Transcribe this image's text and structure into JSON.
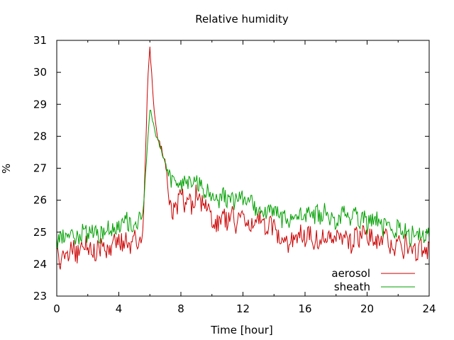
{
  "chart_data": {
    "type": "line",
    "title": "Relative humidity",
    "xlabel": "Time [hour]",
    "ylabel": "%",
    "xlim": [
      0,
      24
    ],
    "ylim": [
      23,
      31
    ],
    "x_ticks": [
      0,
      4,
      8,
      12,
      16,
      20,
      24
    ],
    "y_ticks": [
      23,
      24,
      25,
      26,
      27,
      28,
      29,
      30,
      31
    ],
    "legend_position": "bottom-right",
    "grid": false,
    "series": [
      {
        "name": "aerosol",
        "color": "#cc0000",
        "x": [
          0.0,
          0.25,
          0.5,
          0.75,
          1.0,
          1.25,
          1.5,
          1.75,
          2.0,
          2.25,
          2.5,
          2.75,
          3.0,
          3.25,
          3.5,
          3.75,
          4.0,
          4.25,
          4.5,
          4.75,
          5.0,
          5.25,
          5.5,
          5.6,
          5.75,
          5.9,
          6.0,
          6.1,
          6.25,
          6.5,
          6.75,
          7.0,
          7.25,
          7.5,
          7.75,
          8.0,
          8.25,
          8.5,
          8.75,
          9.0,
          9.25,
          9.5,
          9.75,
          10.0,
          10.25,
          10.5,
          10.75,
          11.0,
          11.25,
          11.5,
          11.75,
          12.0,
          12.25,
          12.5,
          12.75,
          13.0,
          13.25,
          13.5,
          13.75,
          14.0,
          14.25,
          14.5,
          14.75,
          15.0,
          15.25,
          15.5,
          15.75,
          16.0,
          16.25,
          16.5,
          16.75,
          17.0,
          17.25,
          17.5,
          17.75,
          18.0,
          18.25,
          18.5,
          18.75,
          19.0,
          19.25,
          19.5,
          19.75,
          20.0,
          20.25,
          20.5,
          20.75,
          21.0,
          21.25,
          21.5,
          21.75,
          22.0,
          22.25,
          22.5,
          22.75,
          23.0,
          23.25,
          23.5,
          23.75,
          24.0
        ],
        "values": [
          24.4,
          24.0,
          24.3,
          24.2,
          24.6,
          24.3,
          24.4,
          24.7,
          24.6,
          24.5,
          24.3,
          24.6,
          24.4,
          24.5,
          24.4,
          24.7,
          24.8,
          24.6,
          24.9,
          24.5,
          24.8,
          24.5,
          24.8,
          25.6,
          28.0,
          30.2,
          30.7,
          30.0,
          29.0,
          28.0,
          27.6,
          27.2,
          26.0,
          25.6,
          25.8,
          26.2,
          25.9,
          26.0,
          25.8,
          26.3,
          25.9,
          25.8,
          25.7,
          25.4,
          25.2,
          25.4,
          25.5,
          25.3,
          25.6,
          25.2,
          25.4,
          25.7,
          25.2,
          25.3,
          25.1,
          25.4,
          25.3,
          25.0,
          25.2,
          25.1,
          24.8,
          24.9,
          24.7,
          24.6,
          24.9,
          24.7,
          25.0,
          24.8,
          25.1,
          24.7,
          24.9,
          24.6,
          25.0,
          24.8,
          24.7,
          24.9,
          24.7,
          25.0,
          24.8,
          24.6,
          24.9,
          24.8,
          25.0,
          24.7,
          24.9,
          24.6,
          24.8,
          24.7,
          24.9,
          24.6,
          24.5,
          24.8,
          24.3,
          24.7,
          24.4,
          24.5,
          24.3,
          24.6,
          24.2,
          24.5
        ],
        "amplitude": 0.32
      },
      {
        "name": "sheath",
        "color": "#00a000",
        "x": [
          0.0,
          0.25,
          0.5,
          0.75,
          1.0,
          1.25,
          1.5,
          1.75,
          2.0,
          2.25,
          2.5,
          2.75,
          3.0,
          3.25,
          3.5,
          3.75,
          4.0,
          4.25,
          4.5,
          4.75,
          5.0,
          5.25,
          5.5,
          5.6,
          5.75,
          5.9,
          6.0,
          6.1,
          6.25,
          6.5,
          6.75,
          7.0,
          7.25,
          7.5,
          7.75,
          8.0,
          8.25,
          8.5,
          8.75,
          9.0,
          9.25,
          9.5,
          9.75,
          10.0,
          10.25,
          10.5,
          10.75,
          11.0,
          11.25,
          11.5,
          11.75,
          12.0,
          12.25,
          12.5,
          12.75,
          13.0,
          13.25,
          13.5,
          13.75,
          14.0,
          14.25,
          14.5,
          14.75,
          15.0,
          15.25,
          15.5,
          15.75,
          16.0,
          16.25,
          16.5,
          16.75,
          17.0,
          17.25,
          17.5,
          17.75,
          18.0,
          18.25,
          18.5,
          18.75,
          19.0,
          19.25,
          19.5,
          19.75,
          20.0,
          20.25,
          20.5,
          20.75,
          21.0,
          21.25,
          21.5,
          21.75,
          22.0,
          22.25,
          22.5,
          22.75,
          23.0,
          23.25,
          23.5,
          23.75,
          24.0
        ],
        "values": [
          24.7,
          24.8,
          24.9,
          24.8,
          25.0,
          24.8,
          24.9,
          25.1,
          24.9,
          25.0,
          25.1,
          24.9,
          25.0,
          25.2,
          25.0,
          25.1,
          25.2,
          25.3,
          25.4,
          25.2,
          25.3,
          25.3,
          25.5,
          25.8,
          27.0,
          28.2,
          28.9,
          28.6,
          28.3,
          27.9,
          27.5,
          27.1,
          26.7,
          26.5,
          26.4,
          26.5,
          26.6,
          26.5,
          26.6,
          26.6,
          26.4,
          26.3,
          26.4,
          26.2,
          26.1,
          26.0,
          26.2,
          25.9,
          26.0,
          25.9,
          26.1,
          26.0,
          25.8,
          26.0,
          25.7,
          25.8,
          25.7,
          25.6,
          25.7,
          25.5,
          25.6,
          25.4,
          25.5,
          25.3,
          25.5,
          25.4,
          25.6,
          25.5,
          25.7,
          25.4,
          25.6,
          25.5,
          25.7,
          25.4,
          25.6,
          25.3,
          25.5,
          25.6,
          25.4,
          25.5,
          25.6,
          25.3,
          25.5,
          25.2,
          25.4,
          25.3,
          25.5,
          25.1,
          25.3,
          25.2,
          25.0,
          25.2,
          24.9,
          25.1,
          24.8,
          25.0,
          24.9,
          25.1,
          24.8,
          25.0
        ],
        "amplitude": 0.28
      }
    ]
  }
}
